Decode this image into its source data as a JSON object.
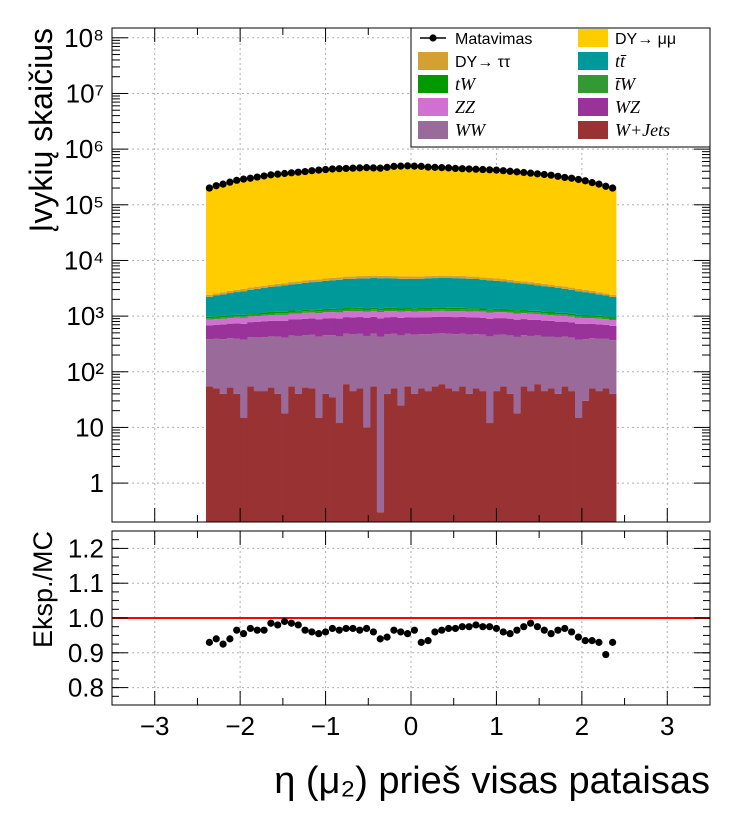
{
  "chart_data": [
    {
      "type": "bar",
      "stacked": true,
      "ylabel": "Įvykių skaičius",
      "yscale": "log",
      "ylim": [
        0.2,
        150000000
      ],
      "xlim": [
        -3.5,
        3.5
      ],
      "grid": true,
      "ytick_labels": [
        "1",
        "10",
        "10²",
        "10³",
        "10⁴",
        "10⁵",
        "10⁶",
        "10⁷",
        "10⁸"
      ],
      "legend_position": "top-right",
      "legend": [
        {
          "label": "Matavimas",
          "kind": "data",
          "color": "#000000"
        },
        {
          "label": "DY→ μμ",
          "kind": "fill",
          "color": "#ffcc00"
        },
        {
          "label": "DY→ ττ",
          "kind": "fill",
          "color": "#d4a032"
        },
        {
          "label": "tt̄",
          "kind": "fill",
          "color": "#009999",
          "italic": true
        },
        {
          "label": "tW",
          "kind": "fill",
          "color": "#009900",
          "italic": true
        },
        {
          "label": "t̄W",
          "kind": "fill",
          "color": "#339933",
          "italic": true
        },
        {
          "label": "ZZ",
          "kind": "fill",
          "color": "#d070d0",
          "italic": true
        },
        {
          "label": "WZ",
          "kind": "fill",
          "color": "#993399",
          "italic": true
        },
        {
          "label": "WW",
          "kind": "fill",
          "color": "#9a6a9a",
          "italic": true
        },
        {
          "label": "W+Jets",
          "kind": "fill",
          "color": "#993333",
          "italic": true
        }
      ],
      "bin_range": [
        -2.4,
        2.4
      ],
      "series": [
        {
          "name": "W+Jets",
          "color": "#993333",
          "values": [
            55,
            50,
            40,
            52,
            40,
            15,
            55,
            45,
            45,
            52,
            40,
            18,
            55,
            40,
            52,
            50,
            15,
            40,
            35,
            12,
            60,
            45,
            50,
            10,
            55,
            0.3,
            40,
            50,
            25,
            55,
            40,
            50,
            45,
            55,
            60,
            50,
            45,
            55,
            40,
            50,
            45,
            12,
            45,
            55,
            40,
            18,
            55,
            45,
            60,
            45,
            50,
            40,
            55,
            45,
            15,
            30,
            50,
            45,
            50,
            40
          ]
        },
        {
          "name": "WW",
          "color": "#9a6a9a",
          "values": [
            330,
            340,
            345,
            350,
            355,
            360,
            365,
            370,
            375,
            380,
            385,
            390,
            395,
            400,
            405,
            410,
            410,
            415,
            420,
            420,
            425,
            425,
            430,
            430,
            430,
            430,
            430,
            430,
            425,
            425,
            425,
            425,
            430,
            430,
            430,
            430,
            430,
            430,
            425,
            425,
            420,
            420,
            415,
            410,
            410,
            405,
            400,
            395,
            390,
            385,
            380,
            375,
            370,
            365,
            360,
            355,
            350,
            345,
            340,
            330
          ]
        },
        {
          "name": "WZ",
          "color": "#993399",
          "values": [
            300,
            310,
            320,
            330,
            340,
            350,
            360,
            370,
            380,
            390,
            400,
            410,
            420,
            430,
            440,
            450,
            455,
            460,
            465,
            470,
            475,
            480,
            482,
            485,
            485,
            485,
            485,
            482,
            480,
            478,
            478,
            480,
            482,
            485,
            485,
            485,
            485,
            482,
            480,
            475,
            470,
            465,
            460,
            455,
            450,
            440,
            430,
            420,
            410,
            400,
            390,
            380,
            370,
            360,
            350,
            340,
            330,
            320,
            310,
            300
          ]
        },
        {
          "name": "ZZ",
          "color": "#d070d0",
          "values": [
            180,
            185,
            190,
            195,
            200,
            205,
            210,
            215,
            220,
            225,
            230,
            235,
            240,
            245,
            250,
            255,
            258,
            260,
            262,
            264,
            266,
            268,
            270,
            270,
            270,
            270,
            270,
            268,
            266,
            264,
            264,
            266,
            268,
            270,
            270,
            270,
            270,
            270,
            268,
            266,
            264,
            262,
            260,
            258,
            255,
            250,
            245,
            240,
            235,
            230,
            225,
            220,
            215,
            210,
            205,
            200,
            195,
            190,
            185,
            180
          ]
        },
        {
          "name": "t̄W",
          "color": "#339933",
          "values": [
            55,
            56,
            57,
            58,
            60,
            62,
            64,
            66,
            68,
            70,
            72,
            74,
            76,
            78,
            80,
            82,
            83,
            84,
            85,
            86,
            87,
            88,
            88,
            89,
            89,
            89,
            89,
            88,
            88,
            87,
            87,
            88,
            88,
            89,
            89,
            89,
            89,
            88,
            88,
            87,
            86,
            85,
            84,
            83,
            82,
            80,
            78,
            76,
            74,
            72,
            70,
            68,
            66,
            64,
            62,
            60,
            58,
            57,
            56,
            55
          ]
        },
        {
          "name": "tW",
          "color": "#009900",
          "values": [
            55,
            56,
            57,
            58,
            60,
            62,
            64,
            66,
            68,
            70,
            72,
            74,
            76,
            78,
            80,
            82,
            83,
            84,
            85,
            86,
            87,
            88,
            88,
            89,
            89,
            89,
            89,
            88,
            88,
            87,
            87,
            88,
            88,
            89,
            89,
            89,
            89,
            88,
            88,
            87,
            86,
            85,
            84,
            83,
            82,
            80,
            78,
            76,
            74,
            72,
            70,
            68,
            66,
            64,
            62,
            60,
            58,
            57,
            56,
            55
          ]
        },
        {
          "name": "tt̄",
          "color": "#009999",
          "values": [
            1250,
            1350,
            1450,
            1550,
            1650,
            1750,
            1850,
            1950,
            2050,
            2150,
            2250,
            2350,
            2450,
            2550,
            2650,
            2750,
            2850,
            2950,
            3050,
            3150,
            3250,
            3300,
            3350,
            3400,
            3420,
            3420,
            3400,
            3350,
            3300,
            3280,
            3280,
            3300,
            3350,
            3400,
            3420,
            3420,
            3400,
            3350,
            3300,
            3250,
            3150,
            3050,
            2950,
            2850,
            2750,
            2650,
            2550,
            2450,
            2350,
            2250,
            2150,
            2050,
            1950,
            1850,
            1750,
            1650,
            1550,
            1450,
            1350,
            1250
          ]
        },
        {
          "name": "DY→ ττ",
          "color": "#d4a032",
          "values": [
            200,
            215,
            230,
            245,
            260,
            275,
            290,
            305,
            320,
            335,
            350,
            365,
            380,
            395,
            410,
            425,
            435,
            445,
            455,
            465,
            475,
            480,
            485,
            490,
            492,
            492,
            490,
            485,
            480,
            478,
            478,
            480,
            485,
            490,
            492,
            492,
            490,
            485,
            480,
            475,
            465,
            455,
            445,
            435,
            425,
            410,
            395,
            380,
            365,
            350,
            335,
            320,
            305,
            290,
            275,
            260,
            245,
            230,
            215,
            200
          ]
        },
        {
          "name": "DY→ μμ",
          "color": "#ffcc00",
          "values": [
            210000,
            225000,
            240000,
            255000,
            270000,
            285000,
            300000,
            315000,
            330000,
            345000,
            360000,
            372000,
            385000,
            397000,
            410000,
            420000,
            430000,
            440000,
            448000,
            455000,
            462000,
            470000,
            478000,
            485000,
            490000,
            490000,
            485000,
            478000,
            472000,
            470000,
            470000,
            472000,
            478000,
            485000,
            490000,
            490000,
            485000,
            478000,
            470000,
            462000,
            455000,
            448000,
            440000,
            430000,
            420000,
            410000,
            397000,
            385000,
            372000,
            360000,
            345000,
            330000,
            315000,
            300000,
            285000,
            270000,
            255000,
            240000,
            225000,
            210000
          ]
        }
      ],
      "data_points": {
        "name": "Matavimas",
        "x": [
          -2.36,
          -2.28,
          -2.2,
          -2.12,
          -2.04,
          -1.96,
          -1.88,
          -1.8,
          -1.72,
          -1.64,
          -1.56,
          -1.48,
          -1.4,
          -1.32,
          -1.24,
          -1.16,
          -1.08,
          -1.0,
          -0.92,
          -0.84,
          -0.76,
          -0.68,
          -0.6,
          -0.52,
          -0.44,
          -0.36,
          -0.28,
          -0.2,
          -0.12,
          -0.04,
          0.04,
          0.12,
          0.2,
          0.28,
          0.36,
          0.44,
          0.52,
          0.6,
          0.68,
          0.76,
          0.84,
          0.92,
          1.0,
          1.08,
          1.16,
          1.24,
          1.32,
          1.4,
          1.48,
          1.56,
          1.64,
          1.72,
          1.8,
          1.88,
          1.96,
          2.04,
          2.12,
          2.2,
          2.28,
          2.36
        ],
        "y": [
          200000,
          220000,
          235000,
          255000,
          275000,
          290000,
          300000,
          315000,
          330000,
          345000,
          355000,
          365000,
          375000,
          385000,
          395000,
          410000,
          420000,
          430000,
          440000,
          445000,
          450000,
          455000,
          460000,
          465000,
          460000,
          455000,
          470000,
          490000,
          495000,
          500000,
          495000,
          490000,
          475000,
          470000,
          465000,
          460000,
          450000,
          445000,
          440000,
          435000,
          430000,
          425000,
          420000,
          410000,
          400000,
          390000,
          380000,
          370000,
          360000,
          350000,
          340000,
          325000,
          310000,
          300000,
          285000,
          270000,
          250000,
          235000,
          215000,
          200000
        ]
      }
    },
    {
      "type": "scatter",
      "xlabel": "η (μ₂) prieš visas pataisas",
      "ylabel": "Eksp./MC",
      "xlim": [
        -3.5,
        3.5
      ],
      "ylim": [
        0.75,
        1.25
      ],
      "grid": true,
      "xtick_labels": [
        "−3",
        "−2",
        "−1",
        "0",
        "1",
        "2",
        "3"
      ],
      "ytick_labels": [
        "0.8",
        "0.9",
        "1.0",
        "1.1",
        "1.2"
      ],
      "reference_line": {
        "y": 1.0,
        "color": "#ff0000"
      },
      "x": [
        -2.36,
        -2.28,
        -2.2,
        -2.12,
        -2.04,
        -1.96,
        -1.88,
        -1.8,
        -1.72,
        -1.64,
        -1.56,
        -1.48,
        -1.4,
        -1.32,
        -1.24,
        -1.16,
        -1.08,
        -1.0,
        -0.92,
        -0.84,
        -0.76,
        -0.68,
        -0.6,
        -0.52,
        -0.44,
        -0.36,
        -0.28,
        -0.2,
        -0.12,
        -0.04,
        0.04,
        0.12,
        0.2,
        0.28,
        0.36,
        0.44,
        0.52,
        0.6,
        0.68,
        0.76,
        0.84,
        0.92,
        1.0,
        1.08,
        1.16,
        1.24,
        1.32,
        1.4,
        1.48,
        1.56,
        1.64,
        1.72,
        1.8,
        1.88,
        1.96,
        2.04,
        2.12,
        2.2,
        2.28,
        2.36
      ],
      "y": [
        0.93,
        0.94,
        0.925,
        0.94,
        0.965,
        0.955,
        0.97,
        0.965,
        0.965,
        0.985,
        0.98,
        0.99,
        0.985,
        0.98,
        0.965,
        0.96,
        0.955,
        0.96,
        0.97,
        0.965,
        0.97,
        0.97,
        0.965,
        0.97,
        0.96,
        0.94,
        0.945,
        0.965,
        0.96,
        0.955,
        0.965,
        0.93,
        0.935,
        0.96,
        0.965,
        0.97,
        0.97,
        0.975,
        0.975,
        0.98,
        0.975,
        0.975,
        0.97,
        0.96,
        0.955,
        0.965,
        0.975,
        0.985,
        0.975,
        0.965,
        0.955,
        0.965,
        0.97,
        0.96,
        0.945,
        0.935,
        0.935,
        0.93,
        0.895,
        0.93
      ]
    }
  ]
}
